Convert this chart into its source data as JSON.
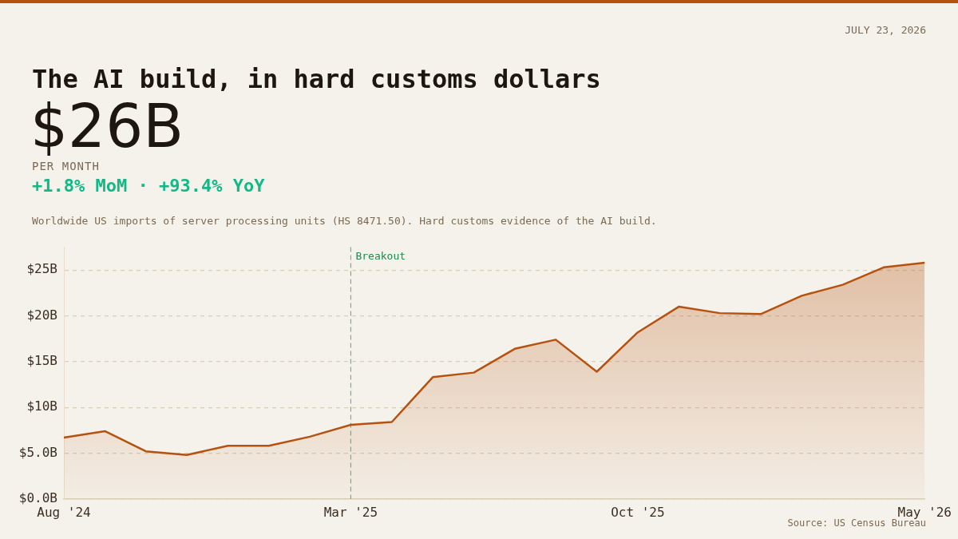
{
  "chart_data": {
    "type": "area",
    "title": "The AI build, in hard customs dollars",
    "subtitle": "Worldwide US imports of server processing units (HS 8471.50). Hard customs evidence of the AI build.",
    "annotations": [
      "JULY 23, 2026",
      "$26B",
      "PER MONTH",
      "+1.8% MoM · +93.4% YoY",
      "Source: US Census Bureau"
    ],
    "categories": [
      "Aug '24",
      null,
      null,
      null,
      null,
      null,
      null,
      "Mar '25",
      null,
      null,
      null,
      null,
      null,
      null,
      "Oct '25",
      null,
      null,
      null,
      null,
      null,
      null,
      "May '26"
    ],
    "series": [
      {
        "color": "#b5520f",
        "values": [
          6.7,
          7.4,
          5.2,
          4.8,
          5.8,
          5.8,
          6.8,
          8.1,
          8.4,
          13.3,
          13.8,
          16.4,
          17.4,
          13.9,
          18.2,
          21.0,
          20.3,
          20.2,
          22.2,
          23.4,
          25.3,
          25.8
        ]
      }
    ],
    "ylim": [
      0,
      27.5
    ],
    "yticks": [
      {
        "value": 0,
        "label": "$0.0B"
      },
      {
        "value": 5,
        "label": "$5.0B"
      },
      {
        "value": 10,
        "label": "$10B"
      },
      {
        "value": 15,
        "label": "$15B"
      },
      {
        "value": 20,
        "label": "$20B"
      },
      {
        "value": 25,
        "label": "$25B"
      }
    ],
    "grid": "y",
    "line_style": "solid",
    "ref_lines": [
      {
        "axis": "x",
        "value": "Mar '25",
        "label": "Breakout",
        "color": "#1e8a4c",
        "line_style": "dashed"
      }
    ]
  }
}
